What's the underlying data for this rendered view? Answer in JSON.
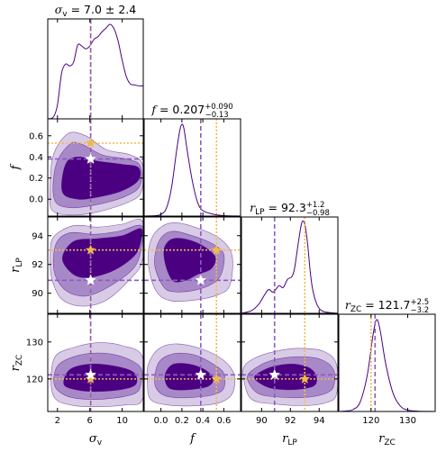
{
  "chart_data": {
    "type": "corner",
    "parameters": [
      {
        "key": "sv",
        "label": "σ",
        "sub": "v",
        "ticks": [
          2,
          6,
          10
        ],
        "range": [
          0.8,
          12.6
        ]
      },
      {
        "key": "f",
        "label": "f",
        "sub": "",
        "ticks": [
          0.0,
          0.2,
          0.4,
          0.6
        ],
        "range": [
          -0.16,
          0.76
        ]
      },
      {
        "key": "rlp",
        "label": "r",
        "sub": "LP",
        "ticks": [
          90,
          92,
          94
        ],
        "range": [
          88.6,
          95.3
        ]
      },
      {
        "key": "rzc",
        "label": "r",
        "sub": "ZC",
        "ticks": [
          120,
          130
        ],
        "range": [
          111.2,
          137.5
        ]
      }
    ],
    "titles": [
      {
        "label": "σ",
        "sub": "v",
        "value": "7.0",
        "plus": "2.4",
        "minus": "",
        "sym": true
      },
      {
        "label": "f",
        "sub": "",
        "value": "0.207",
        "plus": "0.090",
        "minus": "0.13",
        "sym": false
      },
      {
        "label": "r",
        "sub": "LP",
        "value": "92.3",
        "plus": "1.2",
        "minus": "0.98",
        "sym": false
      },
      {
        "label": "r",
        "sub": "ZC",
        "value": "121.7",
        "plus": "2.5",
        "minus": "3.2",
        "sym": false
      }
    ],
    "truth_purple": {
      "sv": 6.1,
      "f": 0.38,
      "rlp": 90.9,
      "rzc": 121.1
    },
    "truth_orange": {
      "sv": 6.1,
      "f": 0.53,
      "rlp": 93.0,
      "rzc": 120.0
    },
    "marginals": {
      "sv": [
        [
          0.8,
          0
        ],
        [
          1.5,
          0.02
        ],
        [
          2,
          0.15
        ],
        [
          2.5,
          0.48
        ],
        [
          3,
          0.58
        ],
        [
          3.5,
          0.56
        ],
        [
          4,
          0.6
        ],
        [
          4.5,
          0.78
        ],
        [
          5,
          0.77
        ],
        [
          5.5,
          0.74
        ],
        [
          6,
          0.77
        ],
        [
          6.5,
          0.84
        ],
        [
          7,
          0.87
        ],
        [
          7.5,
          0.92
        ],
        [
          8,
          0.96
        ],
        [
          8.5,
          1.0
        ],
        [
          9,
          0.95
        ],
        [
          9.5,
          0.82
        ],
        [
          10,
          0.62
        ],
        [
          10.5,
          0.45
        ],
        [
          11,
          0.37
        ],
        [
          11.5,
          0.36
        ],
        [
          12,
          0.35
        ],
        [
          12.6,
          0.35
        ]
      ],
      "f": [
        [
          -0.16,
          0
        ],
        [
          -0.05,
          0.005
        ],
        [
          0.0,
          0.02
        ],
        [
          0.05,
          0.08
        ],
        [
          0.1,
          0.3
        ],
        [
          0.15,
          0.72
        ],
        [
          0.18,
          0.93
        ],
        [
          0.2,
          1.0
        ],
        [
          0.22,
          0.95
        ],
        [
          0.25,
          0.72
        ],
        [
          0.3,
          0.38
        ],
        [
          0.35,
          0.15
        ],
        [
          0.4,
          0.06
        ],
        [
          0.5,
          0.02
        ],
        [
          0.6,
          0.005
        ],
        [
          0.76,
          0
        ]
      ],
      "rlp": [
        [
          88.6,
          0
        ],
        [
          89.3,
          0.03
        ],
        [
          89.8,
          0.1
        ],
        [
          90.2,
          0.2
        ],
        [
          90.5,
          0.26
        ],
        [
          90.8,
          0.23
        ],
        [
          91.2,
          0.3
        ],
        [
          91.5,
          0.28
        ],
        [
          91.8,
          0.37
        ],
        [
          92.1,
          0.4
        ],
        [
          92.3,
          0.5
        ],
        [
          92.6,
          0.82
        ],
        [
          92.8,
          0.99
        ],
        [
          93.0,
          0.97
        ],
        [
          93.2,
          0.75
        ],
        [
          93.4,
          0.42
        ],
        [
          93.6,
          0.22
        ],
        [
          93.9,
          0.08
        ],
        [
          94.3,
          0.02
        ],
        [
          95.3,
          0
        ]
      ],
      "rzc": [
        [
          111.2,
          0
        ],
        [
          113,
          0.005
        ],
        [
          115,
          0.02
        ],
        [
          117,
          0.1
        ],
        [
          119,
          0.4
        ],
        [
          120.5,
          0.82
        ],
        [
          121.5,
          1.0
        ],
        [
          122.5,
          0.88
        ],
        [
          124,
          0.52
        ],
        [
          126,
          0.2
        ],
        [
          128,
          0.06
        ],
        [
          130,
          0.015
        ],
        [
          133,
          0.003
        ],
        [
          137.5,
          0
        ]
      ]
    },
    "contours": {
      "f_sv": [
        [
          [
            1.3,
            -0.1
          ],
          [
            3.5,
            -0.15
          ],
          [
            7,
            -0.12
          ],
          [
            11,
            -0.02
          ],
          [
            12.4,
            0.08
          ],
          [
            12.5,
            0.33
          ],
          [
            11,
            0.42
          ],
          [
            8,
            0.47
          ],
          [
            5.5,
            0.6
          ],
          [
            3.3,
            0.62
          ],
          [
            1.5,
            0.42
          ],
          [
            1.1,
            0.12
          ]
        ],
        [
          [
            1.6,
            0.0
          ],
          [
            3.5,
            -0.08
          ],
          [
            7,
            -0.05
          ],
          [
            10.5,
            0.03
          ],
          [
            12.2,
            0.13
          ],
          [
            12.2,
            0.32
          ],
          [
            10.5,
            0.38
          ],
          [
            7.5,
            0.42
          ],
          [
            5,
            0.52
          ],
          [
            3.5,
            0.52
          ],
          [
            1.8,
            0.32
          ]
        ],
        [
          [
            2.6,
            0.07
          ],
          [
            4.5,
            0.0
          ],
          [
            7,
            0.02
          ],
          [
            10,
            0.08
          ],
          [
            12,
            0.18
          ],
          [
            12,
            0.3
          ],
          [
            10,
            0.33
          ],
          [
            7,
            0.36
          ],
          [
            4.5,
            0.4
          ],
          [
            3,
            0.33
          ]
        ]
      ],
      "rlp_sv": [
        [
          [
            1.3,
            91.0
          ],
          [
            2.5,
            89.6
          ],
          [
            5,
            89.1
          ],
          [
            8,
            89.5
          ],
          [
            11,
            91.0
          ],
          [
            12.5,
            92.3
          ],
          [
            12.5,
            95.0
          ],
          [
            10,
            94.8
          ],
          [
            7,
            94.6
          ],
          [
            4,
            94.7
          ],
          [
            1.5,
            93.9
          ],
          [
            1.1,
            92.5
          ]
        ],
        [
          [
            1.6,
            91.5
          ],
          [
            3,
            90.2
          ],
          [
            5.5,
            89.8
          ],
          [
            8.5,
            90.5
          ],
          [
            11.5,
            91.8
          ],
          [
            12.4,
            93.3
          ],
          [
            12.4,
            94.7
          ],
          [
            9.5,
            94.3
          ],
          [
            6.5,
            94.1
          ],
          [
            3.5,
            94.2
          ],
          [
            1.8,
            93.4
          ]
        ],
        [
          [
            2.6,
            92.4
          ],
          [
            4,
            91.3
          ],
          [
            6,
            91.1
          ],
          [
            9,
            91.6
          ],
          [
            11.5,
            92.6
          ],
          [
            12.3,
            93.6
          ],
          [
            12.3,
            94.5
          ],
          [
            10,
            94.0
          ],
          [
            7,
            93.8
          ],
          [
            4,
            93.6
          ]
        ]
      ],
      "rzc_sv": [
        [
          [
            1.2,
            119
          ],
          [
            1.8,
            114.5
          ],
          [
            4,
            112.8
          ],
          [
            7,
            112.5
          ],
          [
            10.5,
            113
          ],
          [
            12.5,
            114.5
          ],
          [
            12.5,
            126
          ],
          [
            10,
            129
          ],
          [
            7,
            129.8
          ],
          [
            4,
            128.5
          ],
          [
            1.7,
            126
          ]
        ],
        [
          [
            1.6,
            118.5
          ],
          [
            3,
            115.5
          ],
          [
            5.5,
            114.5
          ],
          [
            8.5,
            114.7
          ],
          [
            11.5,
            116
          ],
          [
            12.3,
            118.5
          ],
          [
            12.3,
            123
          ],
          [
            10,
            126
          ],
          [
            7,
            127
          ],
          [
            4,
            126
          ],
          [
            2,
            123.5
          ]
        ],
        [
          [
            2.8,
            118.5
          ],
          [
            4.5,
            117
          ],
          [
            7,
            116.6
          ],
          [
            10,
            117.2
          ],
          [
            11.7,
            118.6
          ],
          [
            11.4,
            121.8
          ],
          [
            9,
            123.5
          ],
          [
            6,
            124
          ],
          [
            3.5,
            122.5
          ]
        ]
      ],
      "rlp_f": [
        [
          [
            -0.12,
            92
          ],
          [
            -0.05,
            90.2
          ],
          [
            0.08,
            89.5
          ],
          [
            0.3,
            89.5
          ],
          [
            0.55,
            89.9
          ],
          [
            0.66,
            90.6
          ],
          [
            0.68,
            92.6
          ],
          [
            0.58,
            93.7
          ],
          [
            0.4,
            94.4
          ],
          [
            0.15,
            94.9
          ],
          [
            0.0,
            94.6
          ],
          [
            -0.1,
            93.6
          ]
        ],
        [
          [
            -0.06,
            92
          ],
          [
            0.02,
            90.5
          ],
          [
            0.12,
            90.1
          ],
          [
            0.32,
            90.2
          ],
          [
            0.5,
            90.7
          ],
          [
            0.58,
            91.4
          ],
          [
            0.6,
            92.7
          ],
          [
            0.5,
            93.4
          ],
          [
            0.3,
            94.0
          ],
          [
            0.1,
            94.3
          ],
          [
            -0.02,
            93.6
          ]
        ],
        [
          [
            0.03,
            92.5
          ],
          [
            0.07,
            91.4
          ],
          [
            0.13,
            90.8
          ],
          [
            0.24,
            90.9
          ],
          [
            0.35,
            91.3
          ],
          [
            0.48,
            91.7
          ],
          [
            0.52,
            92.5
          ],
          [
            0.42,
            93.2
          ],
          [
            0.27,
            93.7
          ],
          [
            0.12,
            93.8
          ],
          [
            0.04,
            93.3
          ]
        ]
      ],
      "rzc_f": [
        [
          [
            -0.13,
            119
          ],
          [
            -0.1,
            114.5
          ],
          [
            0.05,
            113
          ],
          [
            0.3,
            112.7
          ],
          [
            0.55,
            113.5
          ],
          [
            0.68,
            116
          ],
          [
            0.7,
            121
          ],
          [
            0.6,
            125
          ],
          [
            0.4,
            128
          ],
          [
            0.15,
            129.5
          ],
          [
            -0.02,
            128.2
          ],
          [
            -0.12,
            124
          ]
        ],
        [
          [
            -0.06,
            119
          ],
          [
            0.0,
            116
          ],
          [
            0.12,
            115
          ],
          [
            0.3,
            115
          ],
          [
            0.5,
            115.7
          ],
          [
            0.6,
            117.5
          ],
          [
            0.6,
            121.5
          ],
          [
            0.5,
            124
          ],
          [
            0.32,
            126.5
          ],
          [
            0.12,
            126.8
          ],
          [
            -0.02,
            124.5
          ]
        ],
        [
          [
            0.04,
            119.5
          ],
          [
            0.08,
            117.5
          ],
          [
            0.17,
            117
          ],
          [
            0.3,
            117.2
          ],
          [
            0.45,
            118
          ],
          [
            0.5,
            120
          ],
          [
            0.42,
            122.5
          ],
          [
            0.27,
            124
          ],
          [
            0.12,
            124
          ],
          [
            0.05,
            122
          ]
        ]
      ],
      "rzc_rlp": [
        [
          [
            88.75,
            120
          ],
          [
            89.3,
            114.5
          ],
          [
            91,
            113.2
          ],
          [
            93,
            112.8
          ],
          [
            94.5,
            113.6
          ],
          [
            95.2,
            115.8
          ],
          [
            95.2,
            124
          ],
          [
            94.3,
            127.5
          ],
          [
            92.5,
            128.3
          ],
          [
            91,
            127.5
          ],
          [
            89.6,
            125.8
          ],
          [
            88.8,
            123.5
          ]
        ],
        [
          [
            89.0,
            120.5
          ],
          [
            89.7,
            116.2
          ],
          [
            91.2,
            115.1
          ],
          [
            93,
            115
          ],
          [
            94.4,
            116
          ],
          [
            95.0,
            118
          ],
          [
            95.0,
            122.5
          ],
          [
            94.1,
            125.3
          ],
          [
            92.6,
            126
          ],
          [
            91,
            125.3
          ],
          [
            89.8,
            123.5
          ]
        ],
        [
          [
            89.5,
            120.3
          ],
          [
            90.4,
            117.8
          ],
          [
            91.6,
            117.1
          ],
          [
            92.8,
            117.3
          ],
          [
            93.7,
            118.3
          ],
          [
            93.8,
            120.8
          ],
          [
            93.3,
            123
          ],
          [
            92.3,
            124
          ],
          [
            91.2,
            123.7
          ],
          [
            90.2,
            122.5
          ]
        ]
      ]
    },
    "colors": {
      "line": "#4b0082",
      "fill_levels": [
        "#d8cbe6",
        "#a889c8",
        "#4b0082"
      ],
      "truth_purple": "#8a5cc0",
      "truth_orange": "#f0b94d"
    }
  }
}
